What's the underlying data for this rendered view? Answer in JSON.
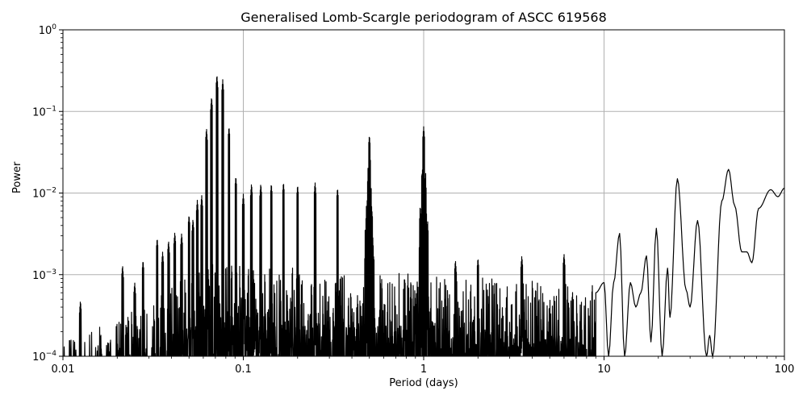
{
  "figure": {
    "title": "Generalised Lomb-Scargle periodogram of ASCC 619568",
    "xlabel": "Period (days)",
    "ylabel": "Power"
  },
  "chart_data": {
    "type": "line",
    "title": "Generalised Lomb-Scargle periodogram of ASCC 619568",
    "xlabel": "Period (days)",
    "ylabel": "Power",
    "xscale": "log",
    "yscale": "log",
    "xlim": [
      0.01,
      100
    ],
    "ylim": [
      0.0001,
      1
    ],
    "grid": true,
    "legend": null,
    "xticks": [
      {
        "value": 0.01,
        "label": "0.01"
      },
      {
        "value": 0.1,
        "label": "0.1"
      },
      {
        "value": 1,
        "label": "1"
      },
      {
        "value": 10,
        "label": "10"
      },
      {
        "value": 100,
        "label": "100"
      }
    ],
    "yticks": [
      {
        "value": 0.0001,
        "base": "10",
        "exp": "−4"
      },
      {
        "value": 0.001,
        "base": "10",
        "exp": "−3"
      },
      {
        "value": 0.01,
        "base": "10",
        "exp": "−2"
      },
      {
        "value": 0.1,
        "base": "10",
        "exp": "−1"
      },
      {
        "value": 1,
        "base": "10",
        "exp": "0"
      }
    ],
    "line_color": "#000000",
    "grid_color": "#b0b0b0",
    "notable_peaks": [
      {
        "period": 0.0125,
        "power": 0.00048
      },
      {
        "period": 0.0214,
        "power": 0.0013
      },
      {
        "period": 0.025,
        "power": 0.0008
      },
      {
        "period": 0.0278,
        "power": 0.0015
      },
      {
        "period": 0.0333,
        "power": 0.0028
      },
      {
        "period": 0.0357,
        "power": 0.0019
      },
      {
        "period": 0.0385,
        "power": 0.0026
      },
      {
        "period": 0.0417,
        "power": 0.0033
      },
      {
        "period": 0.0455,
        "power": 0.0032
      },
      {
        "period": 0.05,
        "power": 0.0054
      },
      {
        "period": 0.0526,
        "power": 0.0048
      },
      {
        "period": 0.0556,
        "power": 0.0082
      },
      {
        "period": 0.0588,
        "power": 0.0094
      },
      {
        "period": 0.0625,
        "power": 0.062
      },
      {
        "period": 0.0667,
        "power": 0.15
      },
      {
        "period": 0.0714,
        "power": 0.28
      },
      {
        "period": 0.0769,
        "power": 0.245
      },
      {
        "period": 0.0833,
        "power": 0.065
      },
      {
        "period": 0.0909,
        "power": 0.016
      },
      {
        "period": 0.1,
        "power": 0.0097
      },
      {
        "period": 0.111,
        "power": 0.013
      },
      {
        "period": 0.125,
        "power": 0.013
      },
      {
        "period": 0.143,
        "power": 0.013
      },
      {
        "period": 0.167,
        "power": 0.0135
      },
      {
        "period": 0.2,
        "power": 0.0125
      },
      {
        "period": 0.25,
        "power": 0.0135
      },
      {
        "period": 0.333,
        "power": 0.0115
      },
      {
        "period": 0.5,
        "power": 0.051
      },
      {
        "period": 1.0,
        "power": 0.065
      },
      {
        "period": 1.5,
        "power": 0.0015
      },
      {
        "period": 2.0,
        "power": 0.0016
      },
      {
        "period": 3.5,
        "power": 0.0017
      },
      {
        "period": 6.0,
        "power": 0.0018
      },
      {
        "period": 12.2,
        "power": 0.0032
      },
      {
        "period": 17.2,
        "power": 0.0017
      },
      {
        "period": 19.5,
        "power": 0.0037
      },
      {
        "period": 25.5,
        "power": 0.015
      },
      {
        "period": 33.0,
        "power": 0.0046
      },
      {
        "period": 49.0,
        "power": 0.0195
      },
      {
        "period": 62.0,
        "power": 0.0019
      },
      {
        "period": 84.0,
        "power": 0.011
      },
      {
        "period": 100.0,
        "power": 0.0115
      }
    ],
    "smooth_long_period": [
      [
        9.0,
        0.0006
      ],
      [
        10.0,
        0.0008
      ],
      [
        10.6,
        0.0001
      ],
      [
        11.3,
        0.0008
      ],
      [
        12.2,
        0.0032
      ],
      [
        13.0,
        0.0001
      ],
      [
        14.0,
        0.0008
      ],
      [
        15.0,
        0.0004
      ],
      [
        16.0,
        0.0006
      ],
      [
        17.2,
        0.0017
      ],
      [
        18.2,
        0.00015
      ],
      [
        19.5,
        0.0037
      ],
      [
        21.0,
        0.0001
      ],
      [
        22.5,
        0.0012
      ],
      [
        23.2,
        0.0003
      ],
      [
        25.5,
        0.015
      ],
      [
        28.5,
        0.00065
      ],
      [
        30.0,
        0.0004
      ],
      [
        33.0,
        0.0046
      ],
      [
        37.0,
        0.0001
      ],
      [
        38.5,
        0.00018
      ],
      [
        40.0,
        0.0001
      ],
      [
        45.0,
        0.008
      ],
      [
        49.0,
        0.0195
      ],
      [
        53.0,
        0.007
      ],
      [
        58.0,
        0.0019
      ],
      [
        62.0,
        0.0019
      ],
      [
        66.0,
        0.0014
      ],
      [
        72.0,
        0.0065
      ],
      [
        84.0,
        0.011
      ],
      [
        92.0,
        0.009
      ],
      [
        100.0,
        0.0115
      ]
    ]
  }
}
